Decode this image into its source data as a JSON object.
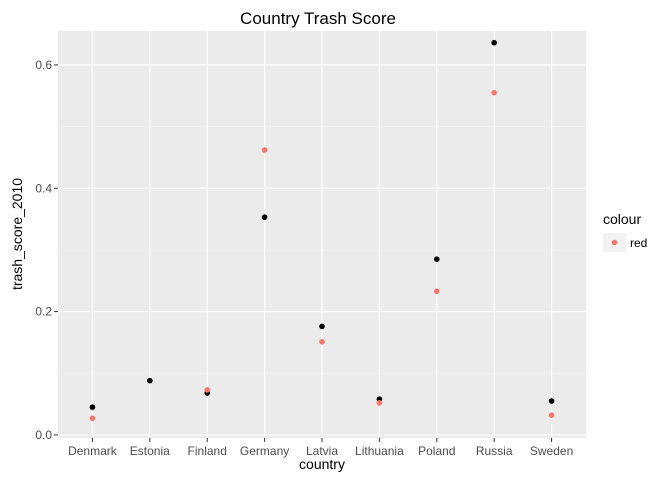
{
  "chart_data": {
    "type": "scatter",
    "title": "Country Trash Score",
    "xlabel": "country",
    "ylabel": "trash_score_2010",
    "categories": [
      "Denmark",
      "Estonia",
      "Finland",
      "Germany",
      "Latvia",
      "Lithuania",
      "Poland",
      "Russia",
      "Sweden"
    ],
    "ylim": [
      -0.005,
      0.655
    ],
    "yticks": [
      0.0,
      0.2,
      0.4,
      0.6
    ],
    "ytick_labels": [
      "0.0",
      "0.2",
      "0.4",
      "0.6"
    ],
    "grid": true,
    "legend": {
      "title": "colour",
      "placement": "right",
      "entries": [
        {
          "label": "red",
          "color": "#F8766D"
        }
      ]
    },
    "series": [
      {
        "color": "#000000",
        "values": [
          0.045,
          0.088,
          0.068,
          0.353,
          0.176,
          0.058,
          0.285,
          0.636,
          0.055
        ]
      },
      {
        "name": "red",
        "color": "#F8766D",
        "values": [
          0.027,
          null,
          0.073,
          0.462,
          0.151,
          0.052,
          0.233,
          0.555,
          0.032
        ]
      }
    ]
  }
}
